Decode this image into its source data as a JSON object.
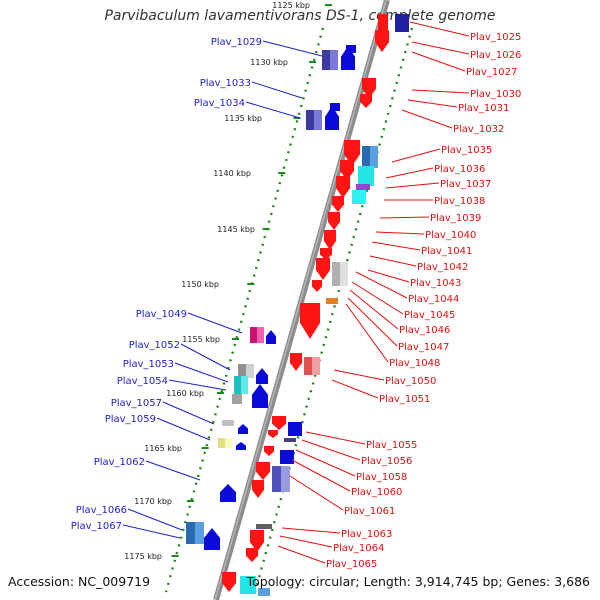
{
  "title": "Parvibaculum lavamentivorans DS-1, complete genome",
  "footer": {
    "accession": "Accession: NC_009719",
    "topology": "Topology: circular; Length: 3,914,745 bp; Genes: 3,686"
  },
  "colors": {
    "forward": "#0b0bd8",
    "reverse": "#ff1414",
    "backbone": "#8c8c8c",
    "scale_ticks": "#1a8a1a",
    "label_forward": "#1e1ec8",
    "label_reverse": "#e01010"
  },
  "kbp_ticks": [
    "1125 kbp",
    "1130 kbp",
    "1135 kbp",
    "1140 kbp",
    "1145 kbp",
    "1150 kbp",
    "1155 kbp",
    "1160 kbp",
    "1165 kbp",
    "1170 kbp",
    "1175 kbp"
  ],
  "left_labels": [
    "Plav_1029",
    "Plav_1033",
    "Plav_1034",
    "Plav_1049",
    "Plav_1052",
    "Plav_1053",
    "Plav_1054",
    "Plav_1057",
    "Plav_1059",
    "Plav_1062",
    "Plav_1066",
    "Plav_1067"
  ],
  "right_labels": [
    "Plav_1025",
    "Plav_1026",
    "Plav_1027",
    "Plav_1030",
    "Plav_1031",
    "Plav_1032",
    "Plav_1035",
    "Plav_1036",
    "Plav_1037",
    "Plav_1038",
    "Plav_1039",
    "Plav_1040",
    "Plav_1041",
    "Plav_1042",
    "Plav_1043",
    "Plav_1044",
    "Plav_1045",
    "Plav_1046",
    "Plav_1047",
    "Plav_1048",
    "Plav_1050",
    "Plav_1051",
    "Plav_1055",
    "Plav_1056",
    "Plav_1058",
    "Plav_1060",
    "Plav_1061",
    "Plav_1063",
    "Plav_1064",
    "Plav_1065"
  ]
}
